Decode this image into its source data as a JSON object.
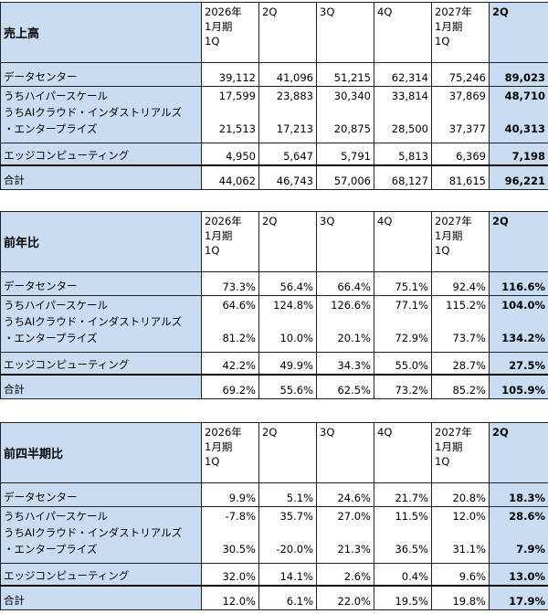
{
  "columns": [
    "2026年\n1月期\n1Q",
    "2Q",
    "3Q",
    "4Q",
    "2027年\n1月期\n1Q",
    "2Q"
  ],
  "rowLabels": {
    "datacenter": "データセンター",
    "hyperscale": "うちハイパースケール",
    "ai1": "うちAIクラウド・インダストリアルズ",
    "ai2": "・エンタープライズ",
    "edge": "エッジコンピューティング",
    "total": "合計"
  },
  "tables": [
    {
      "title": "売上高",
      "rows": {
        "datacenter": [
          "39,112",
          "41,096",
          "51,215",
          "62,314",
          "75,246",
          "89,023"
        ],
        "hyperscale": [
          "17,599",
          "23,883",
          "30,340",
          "33,814",
          "37,869",
          "48,710"
        ],
        "ai": [
          "21,513",
          "17,213",
          "20,875",
          "28,500",
          "37,377",
          "40,313"
        ],
        "edge": [
          "4,950",
          "5,647",
          "5,791",
          "5,813",
          "6,369",
          "7,198"
        ],
        "total": [
          "44,062",
          "46,743",
          "57,006",
          "68,127",
          "81,615",
          "96,221"
        ]
      }
    },
    {
      "title": "前年比",
      "rows": {
        "datacenter": [
          "73.3%",
          "56.4%",
          "66.4%",
          "75.1%",
          "92.4%",
          "116.6%"
        ],
        "hyperscale": [
          "64.6%",
          "124.8%",
          "126.6%",
          "77.1%",
          "115.2%",
          "104.0%"
        ],
        "ai": [
          "81.2%",
          "10.0%",
          "20.1%",
          "72.9%",
          "73.7%",
          "134.2%"
        ],
        "edge": [
          "42.2%",
          "49.9%",
          "34.3%",
          "55.0%",
          "28.7%",
          "27.5%"
        ],
        "total": [
          "69.2%",
          "55.6%",
          "62.5%",
          "73.2%",
          "85.2%",
          "105.9%"
        ]
      }
    },
    {
      "title": "前四半期比",
      "rows": {
        "datacenter": [
          "9.9%",
          "5.1%",
          "24.6%",
          "21.7%",
          "20.8%",
          "18.3%"
        ],
        "hyperscale": [
          "-7.8%",
          "35.7%",
          "27.0%",
          "11.5%",
          "12.0%",
          "28.6%"
        ],
        "ai": [
          "30.5%",
          "-20.0%",
          "21.3%",
          "36.5%",
          "31.1%",
          "7.9%"
        ],
        "edge": [
          "32.0%",
          "14.1%",
          "2.6%",
          "0.4%",
          "9.6%",
          "13.0%"
        ],
        "total": [
          "12.0%",
          "6.1%",
          "22.0%",
          "19.5%",
          "19.8%",
          "17.9%"
        ]
      }
    }
  ]
}
